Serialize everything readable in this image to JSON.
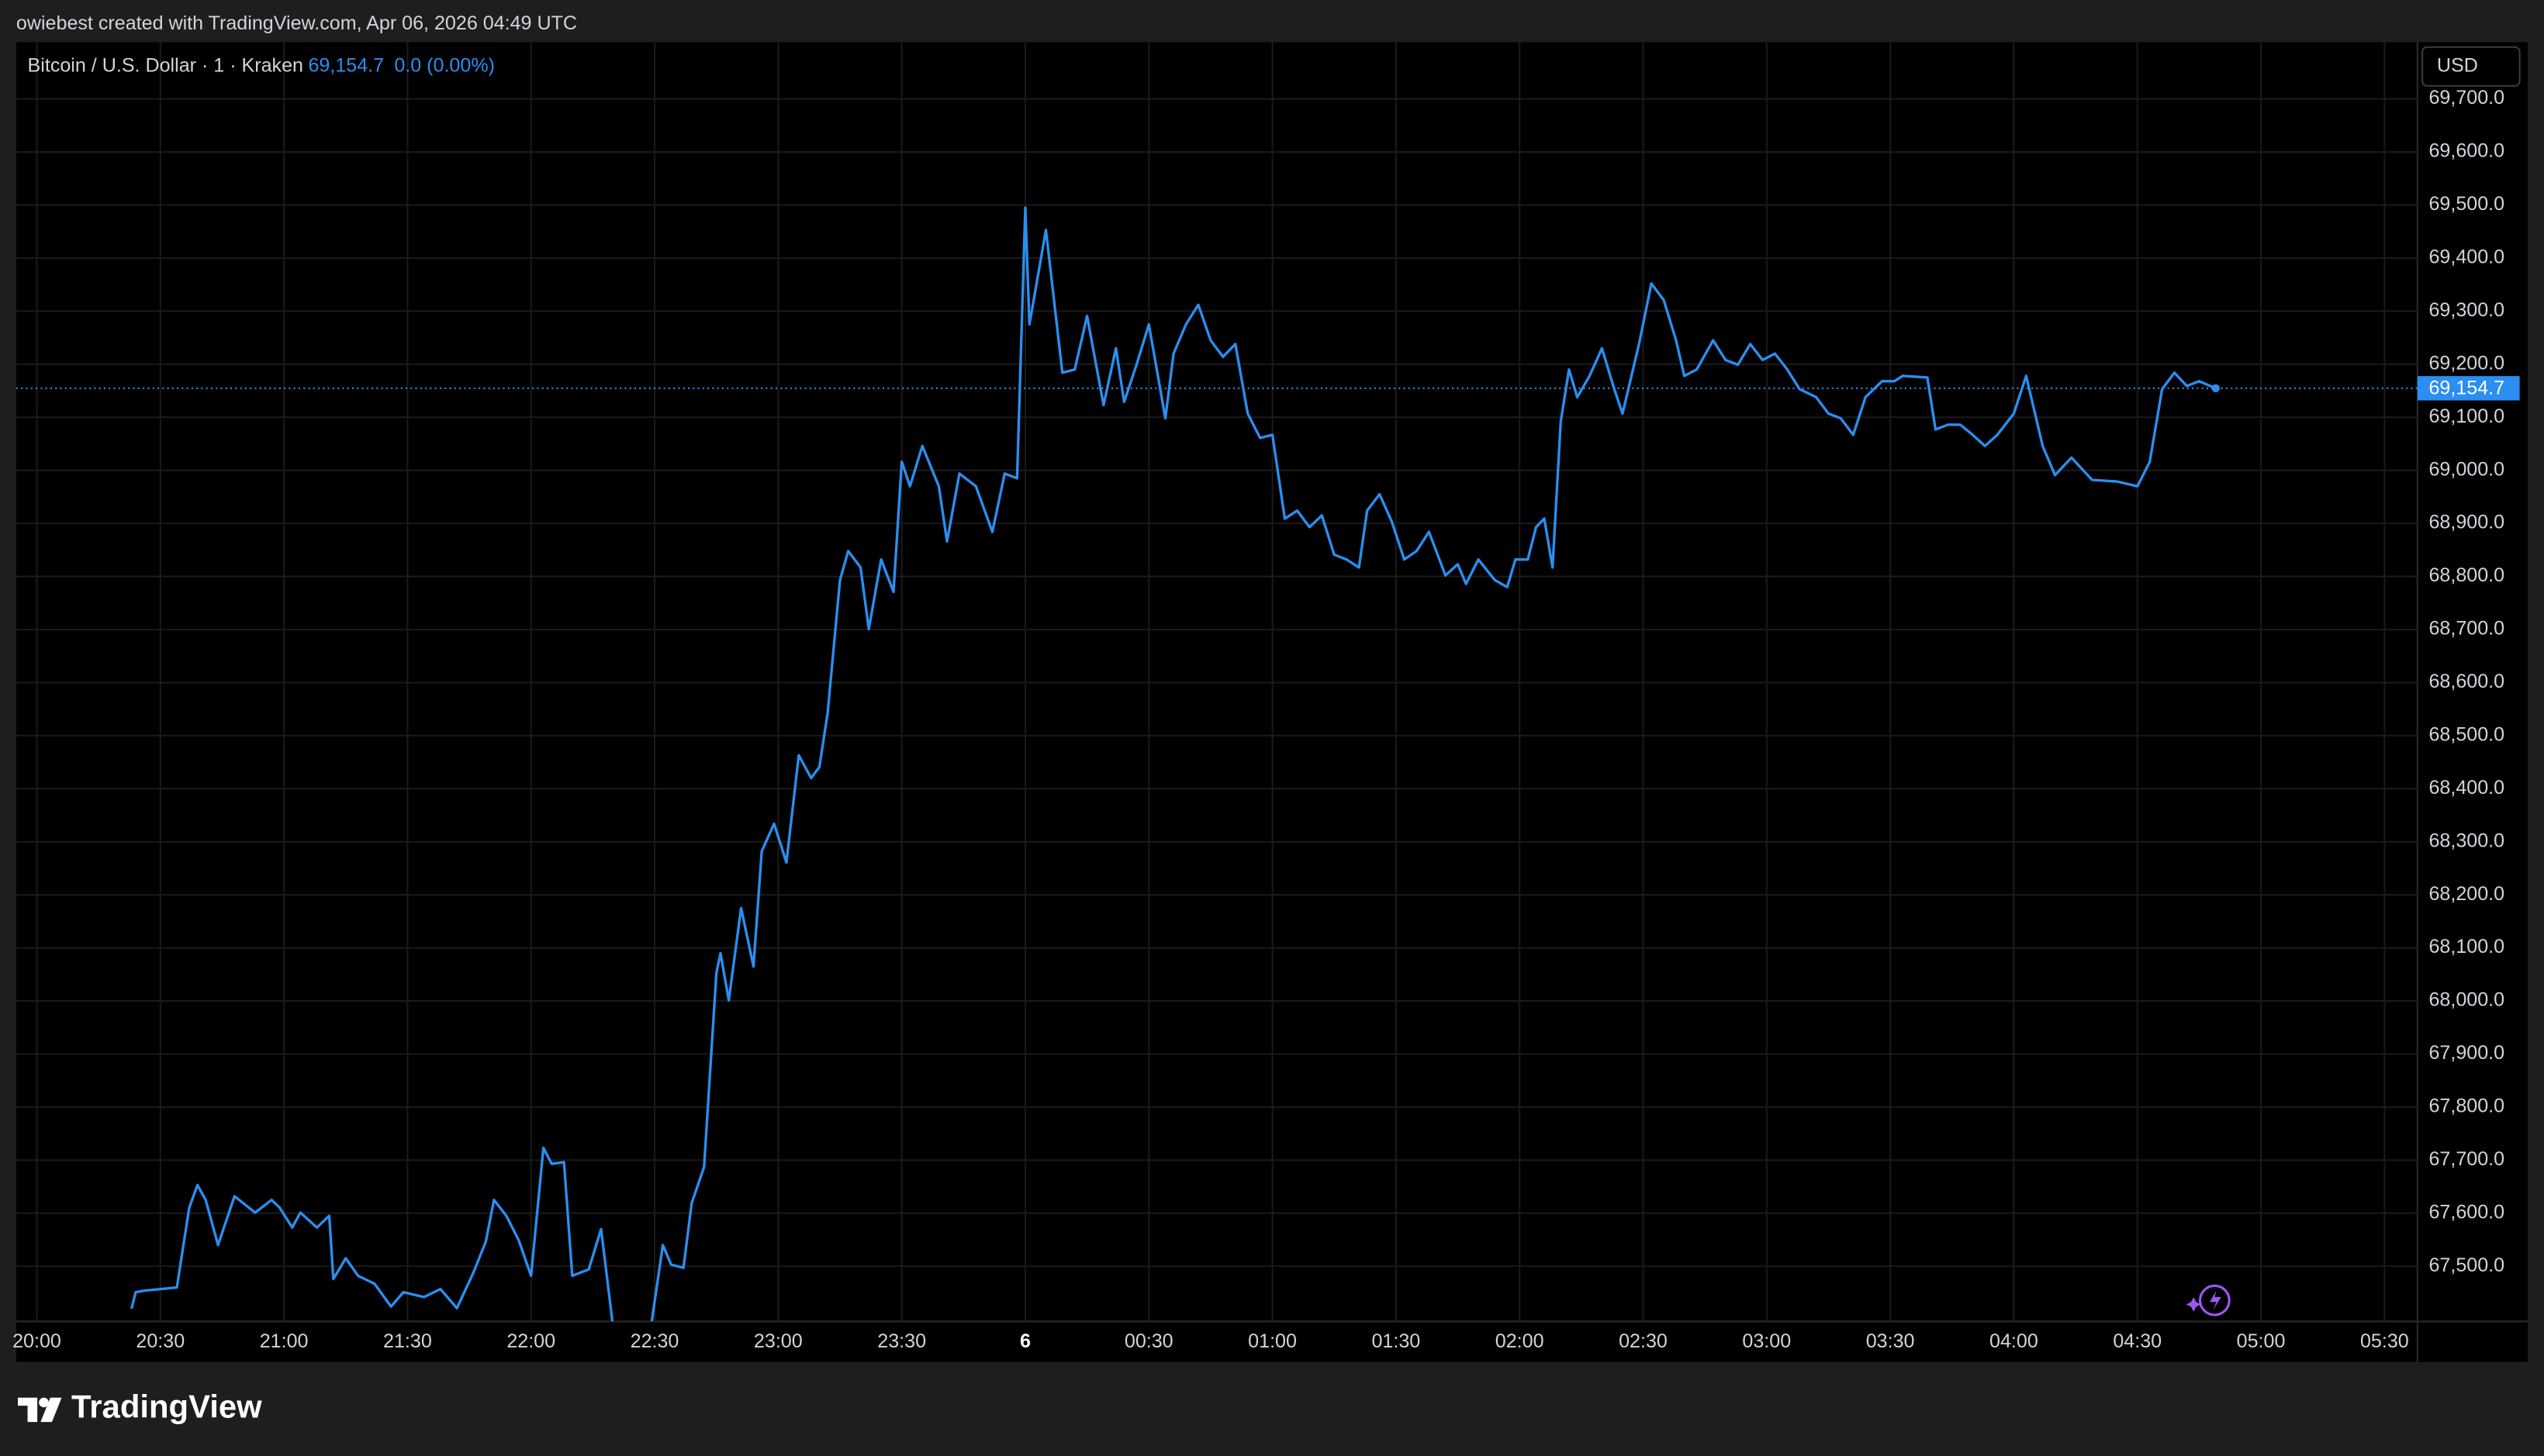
{
  "header": {
    "attribution": "owiebest created with TradingView.com, Apr 06, 2026 04:49 UTC"
  },
  "footer": {
    "brand": "TradingView"
  },
  "chart_data": {
    "type": "line",
    "title": "Bitcoin / U.S. Dollar · 1 · Kraken",
    "last_label": "69,154.7",
    "change_label": "0.0 (0.00%)",
    "currency": "USD",
    "grid": true,
    "x": [
      "20:23",
      "20:24",
      "20:26",
      "20:34",
      "20:37",
      "20:39",
      "20:41",
      "20:44",
      "20:48",
      "20:53",
      "20:57",
      "20:59",
      "21:02",
      "21:04",
      "21:08",
      "21:11",
      "21:12",
      "21:15",
      "21:18",
      "21:22",
      "21:26",
      "21:29",
      "21:34",
      "21:38",
      "21:42",
      "21:46",
      "21:49",
      "21:51",
      "21:54",
      "21:57",
      "22:00",
      "22:03",
      "22:05",
      "22:08",
      "22:10",
      "22:14",
      "22:17",
      "22:20",
      "22:29",
      "22:32",
      "22:34",
      "22:37",
      "22:39",
      "22:42",
      "22:45",
      "22:46",
      "22:48",
      "22:51",
      "22:54",
      "22:56",
      "22:59",
      "23:02",
      "23:05",
      "23:08",
      "23:10",
      "23:12",
      "23:15",
      "23:17",
      "23:20",
      "23:22",
      "23:25",
      "23:28",
      "23:30",
      "23:32",
      "23:35",
      "23:39",
      "23:41",
      "23:44",
      "23:48",
      "23:52",
      "23:55",
      "23:58",
      "00:00",
      "00:01",
      "00:05",
      "00:09",
      "00:12",
      "00:15",
      "00:19",
      "00:22",
      "00:24",
      "00:27",
      "00:30",
      "00:34",
      "00:36",
      "00:39",
      "00:42",
      "00:45",
      "00:48",
      "00:51",
      "00:54",
      "00:57",
      "01:00",
      "01:03",
      "01:06",
      "01:09",
      "01:12",
      "01:15",
      "01:18",
      "01:21",
      "01:23",
      "01:26",
      "01:29",
      "01:32",
      "01:35",
      "01:38",
      "01:42",
      "01:45",
      "01:47",
      "01:50",
      "01:54",
      "01:57",
      "01:59",
      "02:02",
      "02:04",
      "02:06",
      "02:08",
      "02:10",
      "02:12",
      "02:14",
      "02:17",
      "02:20",
      "02:23",
      "02:25",
      "02:29",
      "02:32",
      "02:35",
      "02:38",
      "02:40",
      "02:43",
      "02:47",
      "02:50",
      "02:53",
      "02:56",
      "02:59",
      "03:02",
      "03:05",
      "03:08",
      "03:12",
      "03:15",
      "03:18",
      "03:21",
      "03:24",
      "03:28",
      "03:31",
      "03:33",
      "03:39",
      "03:41",
      "03:44",
      "03:47",
      "03:50",
      "03:53",
      "03:56",
      "04:00",
      "04:03",
      "04:07",
      "04:10",
      "04:14",
      "04:19",
      "04:25",
      "04:30",
      "04:33",
      "04:36",
      "04:39",
      "04:42",
      "04:45",
      "04:49"
    ],
    "series": [
      {
        "color": "#2b8ef0",
        "values": [
          67420,
          67451,
          67454,
          67460,
          67610,
          67653,
          67625,
          67540,
          67632,
          67601,
          67625,
          67610,
          67573,
          67601,
          67573,
          67595,
          67476,
          67515,
          67482,
          67467,
          67424,
          67451,
          67442,
          67457,
          67421,
          67488,
          67546,
          67625,
          67595,
          67549,
          67482,
          67723,
          67693,
          67696,
          67482,
          67494,
          67570,
          67380,
          67380,
          67540,
          67503,
          67497,
          67619,
          67687,
          68053,
          68090,
          68001,
          68175,
          68065,
          68282,
          68334,
          68261,
          68463,
          68420,
          68441,
          68542,
          68793,
          68848,
          68817,
          68701,
          68832,
          68771,
          69016,
          68970,
          69046,
          68970,
          68866,
          68994,
          68970,
          68884,
          68994,
          68985,
          69495,
          69275,
          69453,
          69184,
          69190,
          69291,
          69123,
          69230,
          69129,
          69199,
          69275,
          69098,
          69220,
          69275,
          69312,
          69245,
          69214,
          69238,
          69107,
          69061,
          69067,
          68909,
          68924,
          68893,
          68915,
          68841,
          68832,
          68817,
          68924,
          68955,
          68903,
          68832,
          68848,
          68884,
          68802,
          68823,
          68786,
          68832,
          68793,
          68780,
          68832,
          68832,
          68893,
          68909,
          68817,
          69092,
          69190,
          69138,
          69178,
          69230,
          69153,
          69107,
          69238,
          69352,
          69321,
          69245,
          69178,
          69190,
          69245,
          69208,
          69199,
          69238,
          69208,
          69220,
          69190,
          69153,
          69138,
          69107,
          69098,
          69067,
          69138,
          69168,
          69168,
          69178,
          69175,
          69077,
          69086,
          69086,
          69067,
          69046,
          69067,
          69107,
          69178,
          69046,
          68991,
          69024,
          68982,
          68979,
          68970,
          69016,
          69153,
          69184,
          69159,
          69168,
          69154.7
        ]
      }
    ],
    "xlim": [
      "19:55",
      "05:38"
    ],
    "xticks": [
      "20:00",
      "20:30",
      "21:00",
      "21:30",
      "22:00",
      "22:30",
      "23:00",
      "23:30",
      {
        "value": "00:00",
        "label": "6"
      },
      "00:30",
      "01:00",
      "01:30",
      "02:00",
      "02:30",
      "03:00",
      "03:30",
      "04:00",
      "04:30",
      "05:00",
      "05:30"
    ],
    "ylim": [
      67396,
      69807
    ],
    "yticks": [
      {
        "value": 67500,
        "label": "67,500.0"
      },
      {
        "value": 67600,
        "label": "67,600.0"
      },
      {
        "value": 67700,
        "label": "67,700.0"
      },
      {
        "value": 67800,
        "label": "67,800.0"
      },
      {
        "value": 67900,
        "label": "67,900.0"
      },
      {
        "value": 68000,
        "label": "68,000.0"
      },
      {
        "value": 68100,
        "label": "68,100.0"
      },
      {
        "value": 68200,
        "label": "68,200.0"
      },
      {
        "value": 68300,
        "label": "68,300.0"
      },
      {
        "value": 68400,
        "label": "68,400.0"
      },
      {
        "value": 68500,
        "label": "68,500.0"
      },
      {
        "value": 68600,
        "label": "68,600.0"
      },
      {
        "value": 68700,
        "label": "68,700.0"
      },
      {
        "value": 68800,
        "label": "68,800.0"
      },
      {
        "value": 68900,
        "label": "68,900.0"
      },
      {
        "value": 69000,
        "label": "69,000.0"
      },
      {
        "value": 69100,
        "label": "69,100.0"
      },
      {
        "value": 69200,
        "label": "69,200.0"
      },
      {
        "value": 69300,
        "label": "69,300.0"
      },
      {
        "value": 69400,
        "label": "69,400.0"
      },
      {
        "value": 69500,
        "label": "69,500.0"
      },
      {
        "value": 69600,
        "label": "69,600.0"
      },
      {
        "value": 69700,
        "label": "69,700.0"
      }
    ]
  }
}
